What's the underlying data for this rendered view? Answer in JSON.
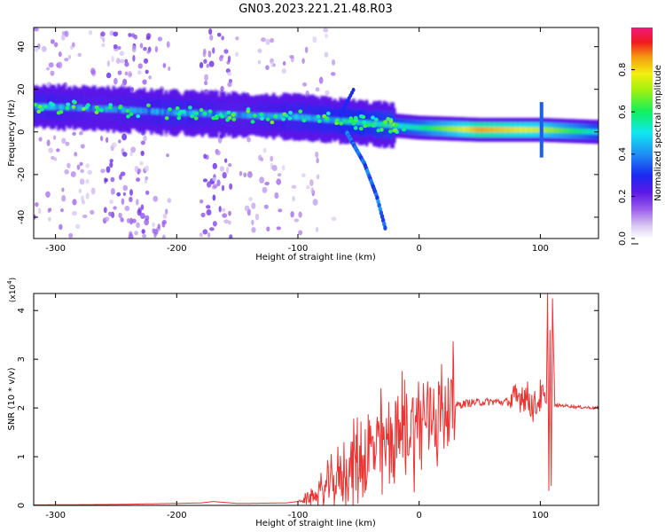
{
  "title": "GN03.2023.221.21.48.R03",
  "chart_data": [
    {
      "type": "heatmap",
      "xlabel": "Height of straight line (km)",
      "ylabel": "Frequency (Hz)",
      "xlim": [
        -318,
        148
      ],
      "ylim": [
        -50,
        49
      ],
      "xticks": [
        -300,
        -200,
        -100,
        0,
        100
      ],
      "yticks": [
        -40,
        -20,
        0,
        20,
        40
      ],
      "colorbar": {
        "label": "Normalized spectral amplitude",
        "range": [
          0,
          1
        ],
        "ticks": [
          0.0,
          0.2,
          0.4,
          0.6,
          0.8
        ],
        "colormap": "rainbow (purple→blue→cyan→green→yellow→red→magenta)"
      },
      "main_band": [
        {
          "x": -318,
          "f": 12,
          "amp": 0.4
        },
        {
          "x": -265,
          "f": 11,
          "amp": 0.35
        },
        {
          "x": -200,
          "f": 9,
          "amp": 0.4
        },
        {
          "x": -150,
          "f": 8,
          "amp": 0.35
        },
        {
          "x": -100,
          "f": 7,
          "amp": 0.4
        },
        {
          "x": -60,
          "f": 5,
          "amp": 0.45
        },
        {
          "x": -20,
          "f": 3,
          "amp": 0.5
        },
        {
          "x": 0,
          "f": 2,
          "amp": 0.55
        },
        {
          "x": 50,
          "f": 1,
          "amp": 0.85
        },
        {
          "x": 100,
          "f": 1,
          "amp": 0.75
        },
        {
          "x": 148,
          "f": 0,
          "amp": 0.5
        }
      ],
      "descending_branch": [
        {
          "x": -60,
          "f": 0
        },
        {
          "x": -45,
          "f": -15
        },
        {
          "x": -35,
          "f": -30
        },
        {
          "x": -28,
          "f": -45
        }
      ],
      "grid": false
    },
    {
      "type": "line",
      "xlabel": "Height of straight line (km)",
      "ylabel": "SNR (10 * v/v)",
      "y_multiplier": "(x10^4)",
      "y_multiplier_base": "(x10",
      "y_multiplier_exp": "4",
      "y_multiplier_close": ")",
      "xlim": [
        -318,
        148
      ],
      "ylim": [
        0,
        4.35
      ],
      "xticks": [
        -300,
        -200,
        -100,
        0,
        100
      ],
      "yticks": [
        0,
        1,
        2,
        3,
        4
      ],
      "color": "#ee3333",
      "series": [
        {
          "x": [
            -318,
            -250,
            -180,
            -170,
            -150,
            -110,
            -100,
            -90,
            -80,
            -70,
            -60,
            -50,
            -40,
            -30,
            -20,
            -10,
            0,
            10,
            20,
            30,
            40,
            50,
            60,
            70,
            80,
            85,
            90,
            95,
            100,
            105,
            106,
            107,
            108,
            109,
            110,
            112,
            120,
            130,
            148
          ],
          "y": [
            0.01,
            0.02,
            0.05,
            0.08,
            0.04,
            0.05,
            0.08,
            0.15,
            0.3,
            0.5,
            0.7,
            0.9,
            1.1,
            1.2,
            1.4,
            1.6,
            1.7,
            1.85,
            1.95,
            2.05,
            2.1,
            2.12,
            2.13,
            2.12,
            2.15,
            2.3,
            2.2,
            2.0,
            2.25,
            2.1,
            4.35,
            0.3,
            3.6,
            0.4,
            4.25,
            2.05,
            2.05,
            2.02,
            2.0
          ]
        }
      ],
      "spikes": [
        {
          "x": -12,
          "y": 2.58
        },
        {
          "x": -42,
          "y": 1.7
        },
        {
          "x": -52,
          "y": 1.45
        }
      ],
      "grid": false
    }
  ]
}
